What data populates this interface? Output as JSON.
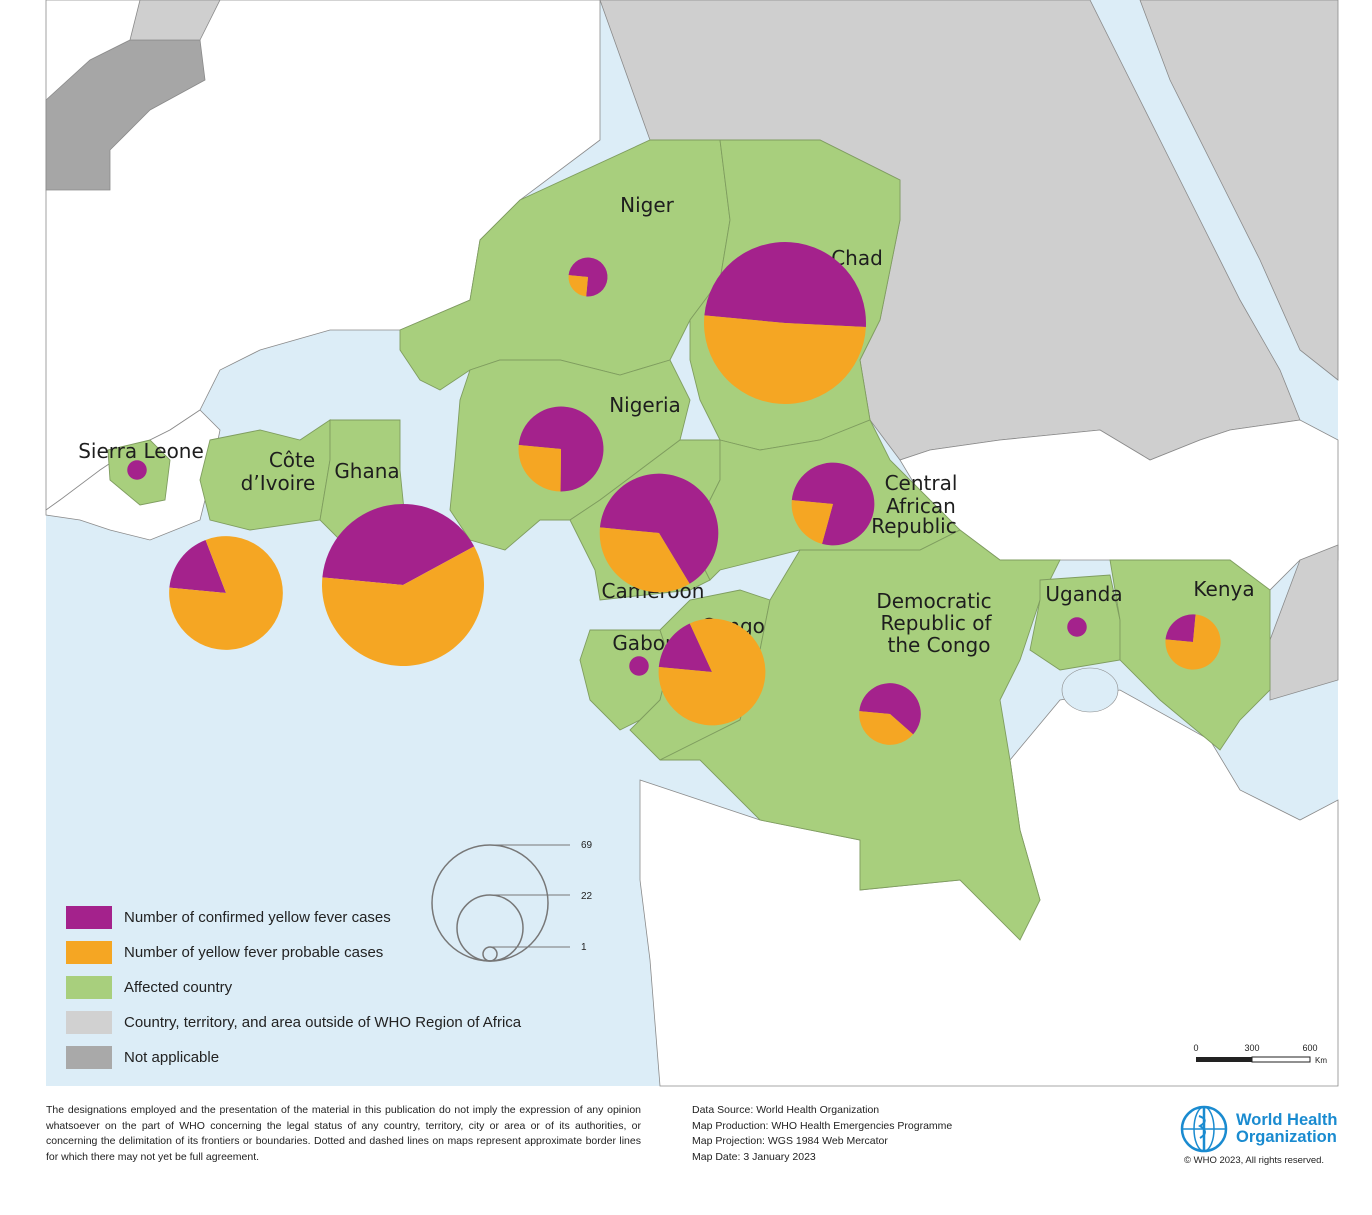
{
  "map": {
    "countries": [
      {
        "name": "Niger",
        "confirmed": 3,
        "probable": 1
      },
      {
        "name": "Chad",
        "confirmed": 34,
        "probable": 35
      },
      {
        "name": "Nigeria",
        "confirmed": 14,
        "probable": 5
      },
      {
        "name": "Cameroon",
        "confirmed": 24,
        "probable": 13
      },
      {
        "name": "Central African Republic",
        "confirmed": 14,
        "probable": 4
      },
      {
        "name": "Sierra Leone",
        "confirmed": 1,
        "probable": 0
      },
      {
        "name": "Côte d’Ivoire",
        "confirmed": 6,
        "probable": 28
      },
      {
        "name": "Ghana",
        "confirmed": 28,
        "probable": 41
      },
      {
        "name": "Gabon",
        "confirmed": 1,
        "probable": 0
      },
      {
        "name": "Congo",
        "confirmed": 5,
        "probable": 25
      },
      {
        "name": "Democratic Republic of the Congo",
        "confirmed": 6,
        "probable": 4
      },
      {
        "name": "Uganda",
        "confirmed": 1,
        "probable": 0
      },
      {
        "name": "Kenya",
        "confirmed": 2,
        "probable": 6
      }
    ],
    "labels": {
      "niger": "Niger",
      "chad": "Chad",
      "nigeria": "Nigeria",
      "sierra_leone": "Sierra Leone",
      "cote_1": "Côte",
      "cote_2": "d’Ivoire",
      "ghana": "Ghana",
      "car_1": "Central",
      "car_2": "African",
      "car_3": "Republic",
      "cameroon": "Cameroon",
      "gabon": "Gabon",
      "congo": "Congo",
      "drc_1": "Democratic",
      "drc_2": "Republic of",
      "drc_3": "the Congo",
      "uganda": "Uganda",
      "kenya": "Kenya"
    },
    "size_legend": {
      "values": [
        "69",
        "22",
        "1"
      ]
    },
    "scale_bar": {
      "ticks": [
        "0",
        "300",
        "600"
      ],
      "unit": "Km"
    }
  },
  "legend": {
    "items": [
      {
        "label": "Number of confirmed yellow fever cases",
        "color": "#a4228c"
      },
      {
        "label": "Number of yellow fever probable cases",
        "color": "#f5a623"
      },
      {
        "label": "Affected country",
        "color": "#a8cf7d"
      },
      {
        "label": "Country, territory, and area outside of WHO Region of Africa",
        "color": "#d1d1d1"
      },
      {
        "label": "Not applicable",
        "color": "#a9a9a9"
      }
    ]
  },
  "colors": {
    "confirmed": "#a4228c",
    "probable": "#f5a623",
    "affected": "#a8cf7d",
    "outside": "#cfcfcf",
    "not_applicable": "#a6a6a6",
    "water": "#dcedf7"
  },
  "footer": {
    "disclaimer": "The designations employed and the presentation of the material in this publication do not imply the expression of any opinion whatsoever on the part of WHO concerning the legal status of any country, territory, city or area or of its authorities, or concerning the delimitation of its frontiers or boundaries. Dotted and dashed lines on maps represent approximate border lines for which there may not yet be full agreement.",
    "data_source": "Data Source: World Health Organization",
    "map_production": "Map Production: WHO Health Emergencies Programme",
    "map_projection": "Map Projection: WGS 1984 Web Mercator",
    "map_date": "Map Date: 3 January 2023",
    "who_line1": "World Health",
    "who_line2": "Organization",
    "copyright": "© WHO 2023, All rights reserved."
  }
}
